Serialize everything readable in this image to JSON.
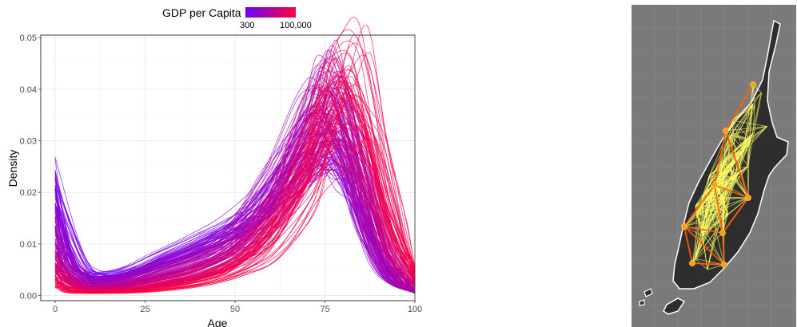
{
  "chart_data": [
    {
      "type": "line",
      "title": "",
      "xlabel": "Age",
      "ylabel": "Density",
      "xlim": [
        -4,
        100
      ],
      "ylim": [
        -0.001,
        0.0505
      ],
      "x_ticks": [
        0,
        25,
        50,
        75,
        100
      ],
      "x_tick_labels": [
        "0",
        "25",
        "50",
        "75",
        "100"
      ],
      "y_ticks": [
        0,
        0.01,
        0.02,
        0.03,
        0.04,
        0.05
      ],
      "y_tick_labels": [
        "0.00",
        "0.01",
        "0.02",
        "0.03",
        "0.04",
        "0.05"
      ],
      "grid": true,
      "legend": {
        "title": "GDP per Capita",
        "placement": "top",
        "scale": "log",
        "range": [
          300,
          100000
        ],
        "labels": [
          "300",
          "100,000"
        ],
        "low_color": "#6a00ff",
        "high_color": "#ff003c"
      },
      "series_count": 180,
      "representative_series": [
        {
          "gdp": 300,
          "x": [
            0,
            5,
            10,
            20,
            30,
            40,
            50,
            60,
            70,
            75,
            80,
            85,
            90,
            95,
            100
          ],
          "y": [
            0.0245,
            0.009,
            0.0045,
            0.005,
            0.008,
            0.011,
            0.014,
            0.019,
            0.027,
            0.03,
            0.026,
            0.017,
            0.008,
            0.003,
            0.0005
          ]
        },
        {
          "gdp": 3000,
          "x": [
            0,
            5,
            10,
            20,
            30,
            40,
            50,
            60,
            70,
            75,
            80,
            85,
            90,
            95,
            100
          ],
          "y": [
            0.008,
            0.003,
            0.0018,
            0.0022,
            0.004,
            0.006,
            0.01,
            0.018,
            0.031,
            0.036,
            0.033,
            0.021,
            0.009,
            0.003,
            0.0008
          ]
        },
        {
          "gdp": 100000,
          "x": [
            0,
            5,
            10,
            20,
            30,
            40,
            50,
            60,
            70,
            75,
            80,
            85,
            90,
            95,
            100
          ],
          "y": [
            0.0015,
            0.0005,
            0.0004,
            0.0005,
            0.001,
            0.002,
            0.004,
            0.009,
            0.021,
            0.03,
            0.039,
            0.041,
            0.03,
            0.015,
            0.005
          ]
        }
      ]
    },
    {
      "type": "network-map",
      "title": "",
      "background_color": "#7a7a7a",
      "land_color": "#2e2e2e",
      "edge_color_weak": "#ffff66",
      "edge_color_strong": "#ff5a00",
      "node_color": "#ff9f00",
      "node_count": 8
    }
  ]
}
